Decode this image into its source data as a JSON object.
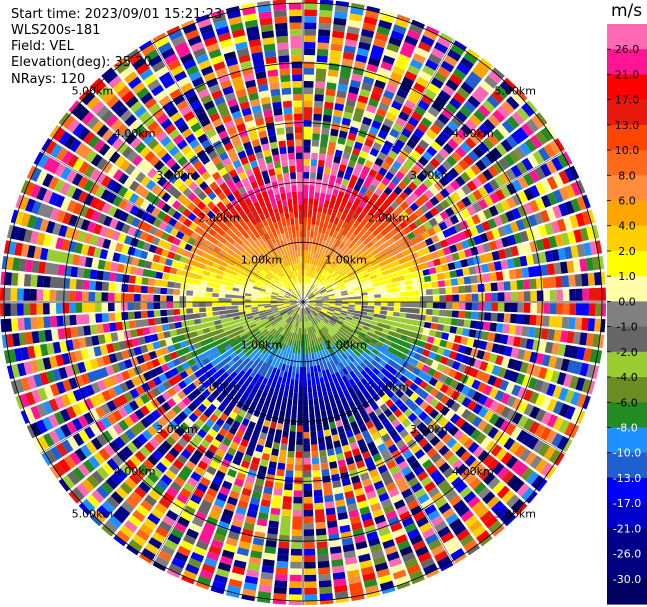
{
  "header": {
    "start_time": "Start time: 2023/09/01 15:21:23",
    "instrument": "WLS200s-181",
    "field": "Field: VEL",
    "elevation": "Elevation(deg): 35.30",
    "nrays": "NRays: 120"
  },
  "chart_data": {
    "type": "ppi",
    "field": "VEL",
    "units": "m/s",
    "nrays": 120,
    "elevation_deg": 35.3,
    "range_rings_km": [
      1.0,
      2.0,
      3.0,
      4.0,
      5.0
    ],
    "ring_label_text": [
      "1.00km",
      "2.00km",
      "3.00km",
      "4.00km",
      "5.00km"
    ],
    "colorbar": {
      "unit": "m/s",
      "ticks": [
        "26.0",
        "21.0",
        "17.0",
        "13.0",
        "10.0",
        "8.0",
        "6.0",
        "4.0",
        "2.0",
        "1.0",
        "0.0",
        "-1.0",
        "-2.0",
        "-4.0",
        "-6.0",
        "-8.0",
        "-10.0",
        "-13.0",
        "-17.0",
        "-21.0",
        "-26.0",
        "-30.0"
      ],
      "colors": [
        "#ff69b4",
        "#ff1493",
        "#ff0000",
        "#e8180c",
        "#ff4500",
        "#ff6a1a",
        "#ff8c3a",
        "#ffa500",
        "#ffd000",
        "#ffff00",
        "#ffffaa",
        "#808080",
        "#666666",
        "#9acd32",
        "#6b8e23",
        "#228b22",
        "#1e90ff",
        "#1f5fcf",
        "#0000ff",
        "#0000cd",
        "#00008b",
        "#000080",
        "#000060"
      ]
    }
  }
}
